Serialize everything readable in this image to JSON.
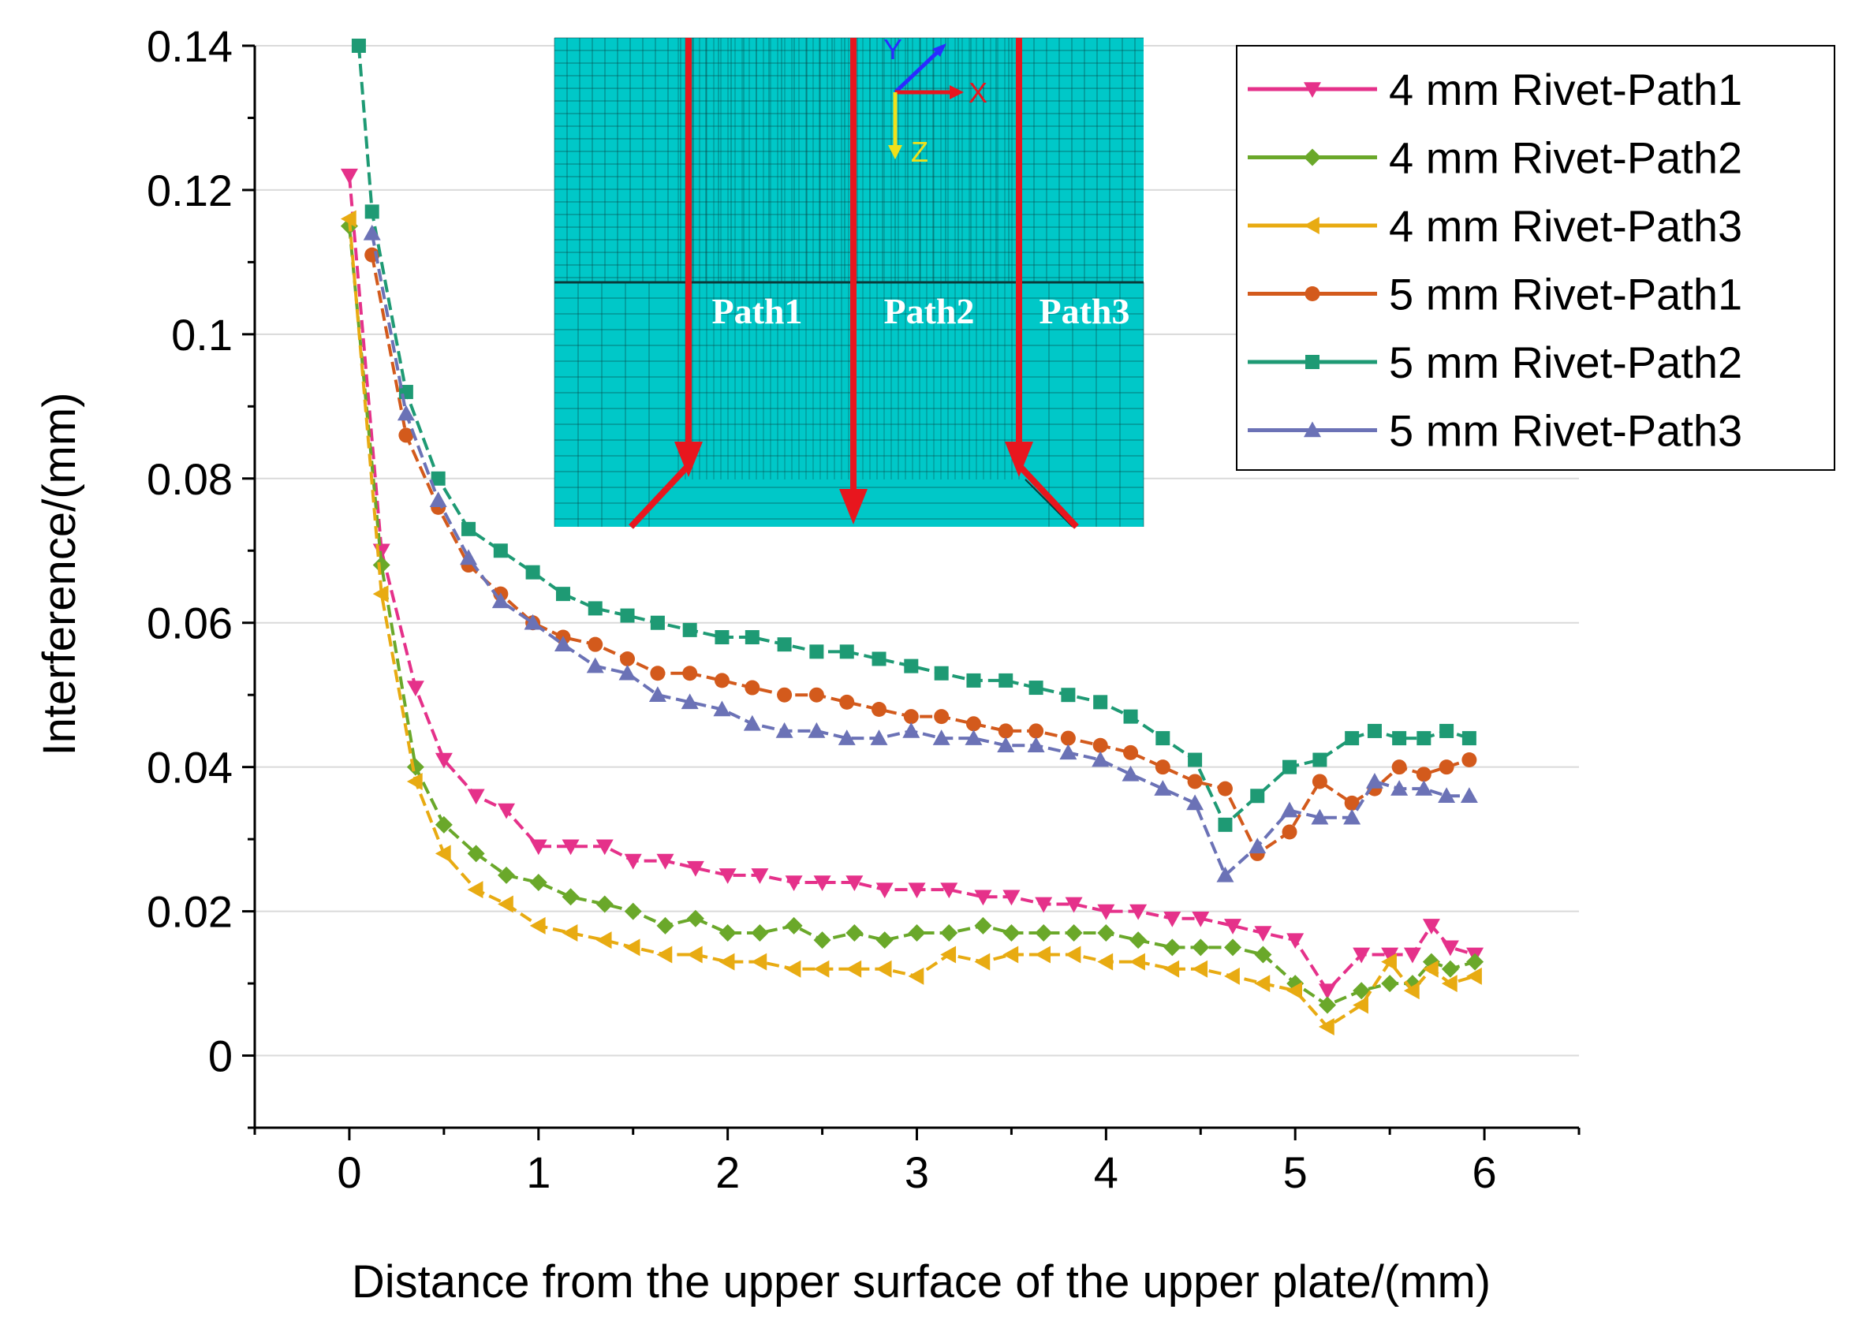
{
  "chart_data": {
    "type": "line",
    "title": "",
    "xlabel": "Distance from the upper surface of the upper plate/(mm)",
    "ylabel": "Interference/(mm)",
    "xlim": [
      -0.5,
      6.5
    ],
    "ylim": [
      -0.01,
      0.14
    ],
    "x_ticks": [
      0,
      1,
      2,
      3,
      4,
      5,
      6
    ],
    "x_tick_labels": [
      "0",
      "1",
      "2",
      "3",
      "4",
      "5",
      "6"
    ],
    "y_ticks": [
      0,
      0.02,
      0.04,
      0.06,
      0.08,
      0.1,
      0.12,
      0.14
    ],
    "y_tick_labels": [
      "0",
      "0.02",
      "0.04",
      "0.06",
      "0.08",
      "0.1",
      "0.12",
      "0.14"
    ],
    "grid": true,
    "legend_position": "top-right",
    "series": [
      {
        "name": "4 mm Rivet-Path1",
        "color": "#e5318a",
        "marker": "triangle-down",
        "dashed": true,
        "x": [
          0,
          0.17,
          0.35,
          0.5,
          0.67,
          0.83,
          1.0,
          1.17,
          1.35,
          1.5,
          1.67,
          1.83,
          2.0,
          2.17,
          2.35,
          2.5,
          2.67,
          2.83,
          3.0,
          3.17,
          3.35,
          3.5,
          3.67,
          3.83,
          4.0,
          4.17,
          4.35,
          4.5,
          4.67,
          4.83,
          5.0,
          5.17,
          5.35,
          5.5,
          5.62,
          5.72,
          5.82,
          5.95
        ],
        "y": [
          0.122,
          0.07,
          0.051,
          0.041,
          0.036,
          0.034,
          0.029,
          0.029,
          0.029,
          0.027,
          0.027,
          0.026,
          0.025,
          0.025,
          0.024,
          0.024,
          0.024,
          0.023,
          0.023,
          0.023,
          0.022,
          0.022,
          0.021,
          0.021,
          0.02,
          0.02,
          0.019,
          0.019,
          0.018,
          0.017,
          0.016,
          0.009,
          0.014,
          0.014,
          0.014,
          0.018,
          0.015,
          0.014
        ]
      },
      {
        "name": "4 mm Rivet-Path2",
        "color": "#6aa82a",
        "marker": "diamond",
        "dashed": true,
        "x": [
          0,
          0.17,
          0.35,
          0.5,
          0.67,
          0.83,
          1.0,
          1.17,
          1.35,
          1.5,
          1.67,
          1.83,
          2.0,
          2.17,
          2.35,
          2.5,
          2.67,
          2.83,
          3.0,
          3.17,
          3.35,
          3.5,
          3.67,
          3.83,
          4.0,
          4.17,
          4.35,
          4.5,
          4.67,
          4.83,
          5.0,
          5.17,
          5.35,
          5.5,
          5.62,
          5.72,
          5.82,
          5.95
        ],
        "y": [
          0.115,
          0.068,
          0.04,
          0.032,
          0.028,
          0.025,
          0.024,
          0.022,
          0.021,
          0.02,
          0.018,
          0.019,
          0.017,
          0.017,
          0.018,
          0.016,
          0.017,
          0.016,
          0.017,
          0.017,
          0.018,
          0.017,
          0.017,
          0.017,
          0.017,
          0.016,
          0.015,
          0.015,
          0.015,
          0.014,
          0.01,
          0.007,
          0.009,
          0.01,
          0.01,
          0.013,
          0.012,
          0.013
        ]
      },
      {
        "name": "4 mm Rivet-Path3",
        "color": "#e8ab12",
        "marker": "triangle-left",
        "dashed": true,
        "x": [
          0,
          0.17,
          0.35,
          0.5,
          0.67,
          0.83,
          1.0,
          1.17,
          1.35,
          1.5,
          1.67,
          1.83,
          2.0,
          2.17,
          2.35,
          2.5,
          2.67,
          2.83,
          3.0,
          3.17,
          3.35,
          3.5,
          3.67,
          3.83,
          4.0,
          4.17,
          4.35,
          4.5,
          4.67,
          4.83,
          5.0,
          5.17,
          5.35,
          5.5,
          5.62,
          5.72,
          5.82,
          5.95
        ],
        "y": [
          0.116,
          0.064,
          0.038,
          0.028,
          0.023,
          0.021,
          0.018,
          0.017,
          0.016,
          0.015,
          0.014,
          0.014,
          0.013,
          0.013,
          0.012,
          0.012,
          0.012,
          0.012,
          0.011,
          0.014,
          0.013,
          0.014,
          0.014,
          0.014,
          0.013,
          0.013,
          0.012,
          0.012,
          0.011,
          0.01,
          0.009,
          0.004,
          0.007,
          0.013,
          0.009,
          0.012,
          0.01,
          0.011
        ]
      },
      {
        "name": "5 mm Rivet-Path1",
        "color": "#d35a1c",
        "marker": "circle",
        "dashed": true,
        "x": [
          0.12,
          0.3,
          0.47,
          0.63,
          0.8,
          0.97,
          1.13,
          1.3,
          1.47,
          1.63,
          1.8,
          1.97,
          2.13,
          2.3,
          2.47,
          2.63,
          2.8,
          2.97,
          3.13,
          3.3,
          3.47,
          3.63,
          3.8,
          3.97,
          4.13,
          4.3,
          4.47,
          4.63,
          4.8,
          4.97,
          5.13,
          5.3,
          5.42,
          5.55,
          5.68,
          5.8,
          5.92
        ],
        "y": [
          0.111,
          0.086,
          0.076,
          0.068,
          0.064,
          0.06,
          0.058,
          0.057,
          0.055,
          0.053,
          0.053,
          0.052,
          0.051,
          0.05,
          0.05,
          0.049,
          0.048,
          0.047,
          0.047,
          0.046,
          0.045,
          0.045,
          0.044,
          0.043,
          0.042,
          0.04,
          0.038,
          0.037,
          0.028,
          0.031,
          0.038,
          0.035,
          0.037,
          0.04,
          0.039,
          0.04,
          0.041
        ]
      },
      {
        "name": "5 mm Rivet-Path2",
        "color": "#1e9a74",
        "marker": "square",
        "dashed": true,
        "x": [
          0.05,
          0.12,
          0.3,
          0.47,
          0.63,
          0.8,
          0.97,
          1.13,
          1.3,
          1.47,
          1.63,
          1.8,
          1.97,
          2.13,
          2.3,
          2.47,
          2.63,
          2.8,
          2.97,
          3.13,
          3.3,
          3.47,
          3.63,
          3.8,
          3.97,
          4.13,
          4.3,
          4.47,
          4.63,
          4.8,
          4.97,
          5.13,
          5.3,
          5.42,
          5.55,
          5.68,
          5.8,
          5.92
        ],
        "y": [
          0.14,
          0.117,
          0.092,
          0.08,
          0.073,
          0.07,
          0.067,
          0.064,
          0.062,
          0.061,
          0.06,
          0.059,
          0.058,
          0.058,
          0.057,
          0.056,
          0.056,
          0.055,
          0.054,
          0.053,
          0.052,
          0.052,
          0.051,
          0.05,
          0.049,
          0.047,
          0.044,
          0.041,
          0.032,
          0.036,
          0.04,
          0.041,
          0.044,
          0.045,
          0.044,
          0.044,
          0.045,
          0.044
        ]
      },
      {
        "name": "5 mm Rivet-Path3",
        "color": "#6b72b6",
        "marker": "triangle-up",
        "dashed": true,
        "x": [
          0.12,
          0.3,
          0.47,
          0.63,
          0.8,
          0.97,
          1.13,
          1.3,
          1.47,
          1.63,
          1.8,
          1.97,
          2.13,
          2.3,
          2.47,
          2.63,
          2.8,
          2.97,
          3.13,
          3.3,
          3.47,
          3.63,
          3.8,
          3.97,
          4.13,
          4.3,
          4.47,
          4.63,
          4.8,
          4.97,
          5.13,
          5.3,
          5.42,
          5.55,
          5.68,
          5.8,
          5.92
        ],
        "y": [
          0.114,
          0.089,
          0.077,
          0.069,
          0.063,
          0.06,
          0.057,
          0.054,
          0.053,
          0.05,
          0.049,
          0.048,
          0.046,
          0.045,
          0.045,
          0.044,
          0.044,
          0.045,
          0.044,
          0.044,
          0.043,
          0.043,
          0.042,
          0.041,
          0.039,
          0.037,
          0.035,
          0.025,
          0.029,
          0.034,
          0.033,
          0.033,
          0.038,
          0.037,
          0.037,
          0.036,
          0.036
        ]
      }
    ]
  },
  "inset": {
    "path_labels": [
      "Path1",
      "Path2",
      "Path3"
    ],
    "axis_labels": {
      "y": "Y",
      "x": "X",
      "z": "Z"
    },
    "colors": {
      "mesh": "#00c8c8",
      "mesh_lines": "#0a3a3a",
      "arrows": "#e8161e"
    }
  }
}
